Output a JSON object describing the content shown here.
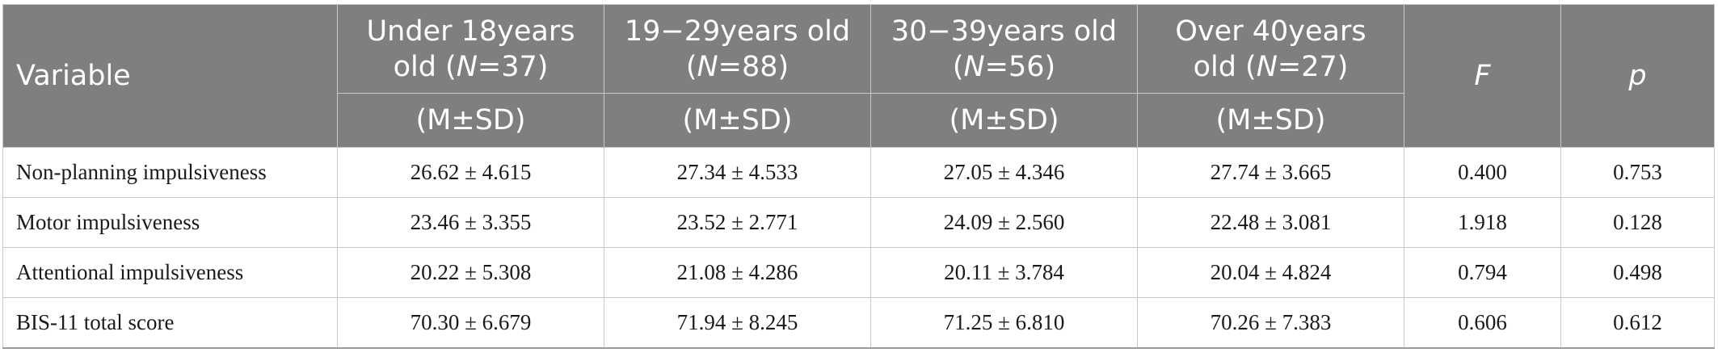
{
  "header": {
    "variable": "Variable",
    "groups": [
      {
        "line1": "Under 18years",
        "pre": "old (",
        "n_label": "N",
        "post": "=37)",
        "stat": "(M±SD)"
      },
      {
        "line1": "19−29years old",
        "pre": "(",
        "n_label": "N",
        "post": "=88)",
        "stat": "(M±SD)"
      },
      {
        "line1": "30−39years old",
        "pre": "(",
        "n_label": "N",
        "post": "=56)",
        "stat": "(M±SD)"
      },
      {
        "line1": "Over 40years",
        "pre": "old (",
        "n_label": "N",
        "post": "=27)",
        "stat": "(M±SD)"
      }
    ],
    "f": "F",
    "p": "p"
  },
  "rows": [
    {
      "label": "Non-planning impulsiveness",
      "values": [
        "26.62 ± 4.615",
        "27.34 ± 4.533",
        "27.05 ± 4.346",
        "27.74 ± 3.665"
      ],
      "f": "0.400",
      "p": "0.753"
    },
    {
      "label": "Motor impulsiveness",
      "values": [
        "23.46 ± 3.355",
        "23.52 ± 2.771",
        "24.09 ± 2.560",
        "22.48 ± 3.081"
      ],
      "f": "1.918",
      "p": "0.128"
    },
    {
      "label": "Attentional impulsiveness",
      "values": [
        "20.22 ± 5.308",
        "21.08 ± 4.286",
        "20.11 ± 3.784",
        "20.04 ± 4.824"
      ],
      "f": "0.794",
      "p": "0.498"
    },
    {
      "label": "BIS-11 total score",
      "values": [
        "70.30 ± 6.679",
        "71.94 ± 8.245",
        "71.25 ± 6.810",
        "70.26 ± 7.383"
      ],
      "f": "0.606",
      "p": "0.612"
    }
  ],
  "colors": {
    "header_bg": "#7f7f7f",
    "header_text": "#ffffff",
    "grid": "#c8c8c8"
  }
}
